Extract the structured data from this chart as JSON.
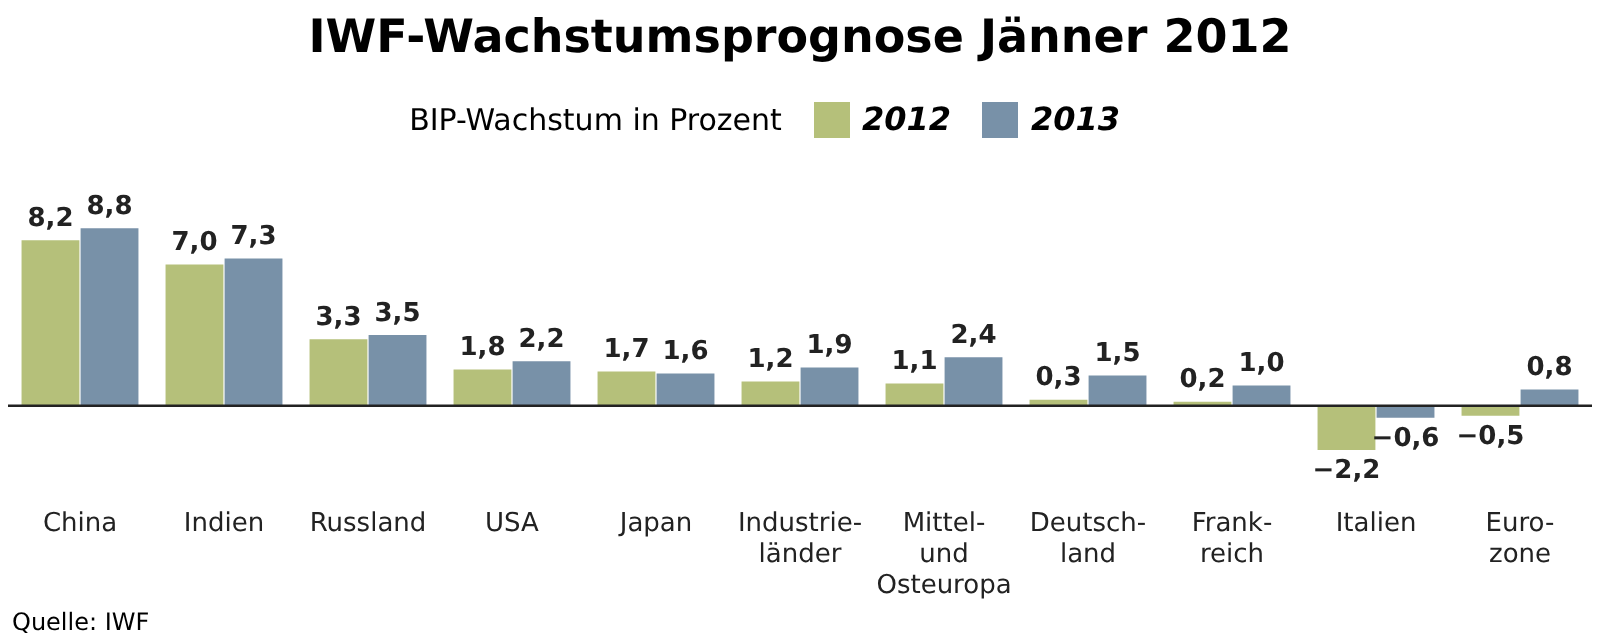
{
  "chart_data": {
    "type": "bar",
    "title": "IWF-Wachstumsprognose Jänner 2012",
    "legend_title": "BIP-Wachstum in Prozent",
    "legend": "top right",
    "categories": [
      "China",
      "Indien",
      "Russland",
      "USA",
      "Japan",
      "Industrie-\nländer",
      "Mittel-\nund\nOsteuropa",
      "Deutsch-\nland",
      "Frank-\nreich",
      "Italien",
      "Euro-\nzone"
    ],
    "series": [
      {
        "name": "2012",
        "color": "#b5c07a",
        "values": [
          8.2,
          7.0,
          3.3,
          1.8,
          1.7,
          1.2,
          1.1,
          0.3,
          0.2,
          -2.2,
          -0.5
        ],
        "value_labels": [
          "8,2",
          "7,0",
          "3,3",
          "1,8",
          "1,7",
          "1,2",
          "1,1",
          "0,3",
          "0,2",
          "−2,2",
          "−0,5"
        ]
      },
      {
        "name": "2013",
        "color": "#7891a8",
        "values": [
          8.8,
          7.3,
          3.5,
          2.2,
          1.6,
          1.9,
          2.4,
          1.5,
          1.0,
          -0.6,
          0.8
        ],
        "value_labels": [
          "8,8",
          "7,3",
          "3,5",
          "2,2",
          "1,6",
          "1,9",
          "2,4",
          "1,5",
          "1,0",
          "−0,6",
          "0,8"
        ]
      }
    ],
    "annotations": [
      "Quelle: IWF"
    ]
  }
}
